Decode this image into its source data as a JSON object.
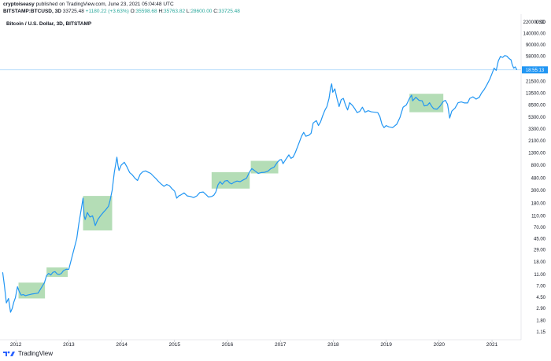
{
  "header": {
    "author": "cryptoiseasy",
    "published": "published on TradingView.com, June 23, 2021 05:04:48 UTC",
    "symbol": "BITSTAMP:BTCUSD, 3D",
    "last": "33725.48",
    "change": "+1180.22 (+3.63%)",
    "open": "O:",
    "open_v": "35598.68",
    "high": "H:",
    "high_v": "35763.82",
    "low": "L:",
    "low_v": "28600.00",
    "close": "C:",
    "close_v": "33725.48"
  },
  "footer": {
    "brand": "TradingView"
  },
  "colors": {
    "line": "#2196f3",
    "box": "#4caf50",
    "axis": "#131722",
    "price_label": "#2196f3"
  },
  "chart_data": {
    "type": "line",
    "title": "Bitcoin / U.S. Dollar, 3D, BITSTAMP",
    "scale": "log",
    "currency_label": "USD",
    "price_label": "18:55:13",
    "y_ticks": [
      "220000.00",
      "140000.00",
      "90000.00",
      "58000.00",
      "21500.00",
      "13500.00",
      "8500.00",
      "5300.00",
      "3300.00",
      "2100.00",
      "1300.00",
      "800.00",
      "480.00",
      "300.00",
      "180.00",
      "110.00",
      "70.00",
      "45.00",
      "29.00",
      "18.00",
      "11.00",
      "7.00",
      "4.50",
      "2.90",
      "1.80",
      "1.15"
    ],
    "x_ticks": [
      "2012",
      "2013",
      "2014",
      "2015",
      "2016",
      "2017",
      "2018",
      "2019",
      "2020",
      "2021"
    ],
    "x_range": [
      2011.7,
      2021.55
    ],
    "y_range": [
      0.85,
      300000
    ],
    "grid": false,
    "series": [
      {
        "values": [
          [
            2011.75,
            12.0
          ],
          [
            2011.78,
            7.5
          ],
          [
            2011.82,
            3.6
          ],
          [
            2011.86,
            4.3
          ],
          [
            2011.9,
            2.5
          ],
          [
            2011.93,
            2.9
          ],
          [
            2011.96,
            3.7
          ],
          [
            2011.99,
            4.4
          ],
          [
            2012.03,
            6.8
          ],
          [
            2012.06,
            5.7
          ],
          [
            2012.1,
            4.9
          ],
          [
            2012.14,
            5.0
          ],
          [
            2012.18,
            4.8
          ],
          [
            2012.22,
            4.9
          ],
          [
            2012.26,
            5.0
          ],
          [
            2012.3,
            5.1
          ],
          [
            2012.36,
            5.2
          ],
          [
            2012.42,
            5.3
          ],
          [
            2012.48,
            6.5
          ],
          [
            2012.54,
            8.0
          ],
          [
            2012.58,
            10.5
          ],
          [
            2012.62,
            11.5
          ],
          [
            2012.66,
            10.8
          ],
          [
            2012.7,
            12.0
          ],
          [
            2012.74,
            12.3
          ],
          [
            2012.78,
            11.2
          ],
          [
            2012.82,
            11.0
          ],
          [
            2012.86,
            11.5
          ],
          [
            2012.9,
            12.8
          ],
          [
            2012.95,
            13.5
          ],
          [
            2013.0,
            13.5
          ],
          [
            2013.05,
            20
          ],
          [
            2013.1,
            30
          ],
          [
            2013.15,
            45
          ],
          [
            2013.19,
            80
          ],
          [
            2013.24,
            150
          ],
          [
            2013.27,
            220
          ],
          [
            2013.29,
            110
          ],
          [
            2013.31,
            95
          ],
          [
            2013.35,
            125
          ],
          [
            2013.4,
            105
          ],
          [
            2013.45,
            110
          ],
          [
            2013.5,
            75
          ],
          [
            2013.55,
            95
          ],
          [
            2013.6,
            110
          ],
          [
            2013.65,
            125
          ],
          [
            2013.7,
            140
          ],
          [
            2013.75,
            160
          ],
          [
            2013.78,
            200
          ],
          [
            2013.82,
            300
          ],
          [
            2013.86,
            600
          ],
          [
            2013.91,
            1100
          ],
          [
            2013.93,
            800
          ],
          [
            2013.95,
            650
          ],
          [
            2013.99,
            800
          ],
          [
            2014.05,
            900
          ],
          [
            2014.1,
            750
          ],
          [
            2014.15,
            600
          ],
          [
            2014.2,
            550
          ],
          [
            2014.25,
            480
          ],
          [
            2014.3,
            440
          ],
          [
            2014.35,
            560
          ],
          [
            2014.4,
            620
          ],
          [
            2014.45,
            640
          ],
          [
            2014.5,
            610
          ],
          [
            2014.55,
            580
          ],
          [
            2014.6,
            520
          ],
          [
            2014.65,
            470
          ],
          [
            2014.7,
            420
          ],
          [
            2014.75,
            380
          ],
          [
            2014.8,
            350
          ],
          [
            2014.85,
            375
          ],
          [
            2014.9,
            360
          ],
          [
            2014.95,
            320
          ],
          [
            2015.0,
            290
          ],
          [
            2015.04,
            220
          ],
          [
            2015.08,
            240
          ],
          [
            2015.12,
            250
          ],
          [
            2015.18,
            270
          ],
          [
            2015.24,
            240
          ],
          [
            2015.3,
            235
          ],
          [
            2015.36,
            225
          ],
          [
            2015.42,
            240
          ],
          [
            2015.48,
            275
          ],
          [
            2015.54,
            280
          ],
          [
            2015.6,
            250
          ],
          [
            2015.64,
            230
          ],
          [
            2015.7,
            235
          ],
          [
            2015.74,
            245
          ],
          [
            2015.78,
            280
          ],
          [
            2015.82,
            370
          ],
          [
            2015.86,
            420
          ],
          [
            2015.9,
            380
          ],
          [
            2015.95,
            430
          ],
          [
            2016.0,
            440
          ],
          [
            2016.04,
            400
          ],
          [
            2016.08,
            385
          ],
          [
            2016.12,
            410
          ],
          [
            2016.18,
            430
          ],
          [
            2016.24,
            420
          ],
          [
            2016.3,
            450
          ],
          [
            2016.36,
            480
          ],
          [
            2016.42,
            620
          ],
          [
            2016.46,
            700
          ],
          [
            2016.5,
            660
          ],
          [
            2016.54,
            620
          ],
          [
            2016.58,
            580
          ],
          [
            2016.64,
            600
          ],
          [
            2016.7,
            605
          ],
          [
            2016.76,
            630
          ],
          [
            2016.82,
            700
          ],
          [
            2016.88,
            740
          ],
          [
            2016.94,
            890
          ],
          [
            2016.99,
            990
          ],
          [
            2017.02,
            1000
          ],
          [
            2017.05,
            850
          ],
          [
            2017.1,
            1000
          ],
          [
            2017.16,
            1200
          ],
          [
            2017.2,
            1050
          ],
          [
            2017.24,
            1100
          ],
          [
            2017.28,
            1300
          ],
          [
            2017.34,
            1800
          ],
          [
            2017.4,
            2500
          ],
          [
            2017.44,
            2900
          ],
          [
            2017.48,
            2500
          ],
          [
            2017.54,
            2600
          ],
          [
            2017.58,
            2800
          ],
          [
            2017.62,
            4200
          ],
          [
            2017.68,
            4600
          ],
          [
            2017.72,
            3800
          ],
          [
            2017.76,
            4400
          ],
          [
            2017.8,
            5600
          ],
          [
            2017.84,
            6900
          ],
          [
            2017.88,
            8000
          ],
          [
            2017.92,
            11000
          ],
          [
            2017.95,
            17000
          ],
          [
            2017.97,
            19500
          ],
          [
            2017.99,
            14000
          ],
          [
            2018.03,
            16000
          ],
          [
            2018.07,
            11000
          ],
          [
            2018.11,
            8000
          ],
          [
            2018.15,
            10500
          ],
          [
            2018.19,
            11000
          ],
          [
            2018.23,
            8500
          ],
          [
            2018.27,
            7000
          ],
          [
            2018.31,
            9300
          ],
          [
            2018.36,
            8400
          ],
          [
            2018.4,
            7500
          ],
          [
            2018.45,
            6300
          ],
          [
            2018.5,
            6600
          ],
          [
            2018.55,
            7800
          ],
          [
            2018.6,
            6400
          ],
          [
            2018.66,
            6800
          ],
          [
            2018.72,
            6500
          ],
          [
            2018.78,
            6400
          ],
          [
            2018.84,
            6300
          ],
          [
            2018.88,
            5400
          ],
          [
            2018.92,
            4000
          ],
          [
            2018.96,
            3500
          ],
          [
            2019.0,
            3800
          ],
          [
            2019.05,
            3600
          ],
          [
            2019.12,
            3500
          ],
          [
            2019.2,
            4000
          ],
          [
            2019.26,
            5200
          ],
          [
            2019.32,
            7800
          ],
          [
            2019.38,
            8500
          ],
          [
            2019.44,
            11000
          ],
          [
            2019.48,
            12500
          ],
          [
            2019.5,
            10000
          ],
          [
            2019.56,
            11500
          ],
          [
            2019.62,
            10200
          ],
          [
            2019.68,
            10000
          ],
          [
            2019.72,
            8200
          ],
          [
            2019.78,
            8400
          ],
          [
            2019.82,
            9300
          ],
          [
            2019.86,
            8100
          ],
          [
            2019.9,
            7300
          ],
          [
            2019.96,
            7200
          ],
          [
            2020.02,
            8200
          ],
          [
            2020.08,
            9800
          ],
          [
            2020.12,
            10200
          ],
          [
            2020.16,
            8700
          ],
          [
            2020.2,
            5100
          ],
          [
            2020.24,
            6700
          ],
          [
            2020.3,
            7500
          ],
          [
            2020.36,
            9300
          ],
          [
            2020.42,
            9600
          ],
          [
            2020.48,
            9200
          ],
          [
            2020.54,
            9200
          ],
          [
            2020.58,
            11000
          ],
          [
            2020.64,
            11700
          ],
          [
            2020.7,
            10700
          ],
          [
            2020.76,
            11500
          ],
          [
            2020.8,
            13500
          ],
          [
            2020.85,
            15500
          ],
          [
            2020.9,
            18500
          ],
          [
            2020.96,
            23500
          ],
          [
            2021.0,
            29000
          ],
          [
            2021.04,
            36000
          ],
          [
            2021.08,
            33000
          ],
          [
            2021.12,
            48000
          ],
          [
            2021.16,
            57000
          ],
          [
            2021.2,
            55000
          ],
          [
            2021.24,
            59000
          ],
          [
            2021.28,
            58000
          ],
          [
            2021.32,
            53000
          ],
          [
            2021.36,
            50000
          ],
          [
            2021.38,
            42000
          ],
          [
            2021.41,
            36000
          ],
          [
            2021.44,
            38000
          ],
          [
            2021.47,
            33725
          ]
        ]
      }
    ],
    "boxes": [
      {
        "x": [
          2012.05,
          2012.55
        ],
        "y": [
          4.3,
          8.0
        ]
      },
      {
        "x": [
          2012.58,
          2012.98
        ],
        "y": [
          10.0,
          14.5
        ]
      },
      {
        "x": [
          2013.27,
          2013.82
        ],
        "y": [
          62,
          240
        ]
      },
      {
        "x": [
          2015.7,
          2016.42
        ],
        "y": [
          320,
          610
        ]
      },
      {
        "x": [
          2016.44,
          2016.96
        ],
        "y": [
          580,
          950
        ]
      },
      {
        "x": [
          2019.44,
          2020.08
        ],
        "y": [
          6400,
          13200
        ]
      }
    ]
  }
}
